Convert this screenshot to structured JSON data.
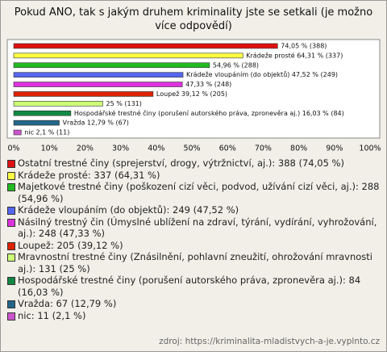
{
  "chart_data": {
    "type": "bar",
    "orientation": "horizontal",
    "title": "Pokud ANO, tak s jakým druhem kriminality jste se setkali (je možno více odpovědí)",
    "categories": [
      "Ostatní trestné činy (sprejerství, drogy, výtržnictví, aj.): 388 (74,05 %)",
      "Krádeže prosté: 337 (64,31 %)",
      "Majetkové trestné činy (poškození cizí věci, podvod, užívání cizí věci, aj.): 288 (54,96 %)",
      "Krádeže vloupáním (do objektů): 249 (47,52 %)",
      "Násilný trestný čin (Úmyslné ublížení na zdraví, týrání, vydírání, vyhrožování, aj.): 248 (47,33 %)",
      "Loupež: 205 (39,12 %)",
      "Mravnostní trestné činy (Znásilnění, pohlavní zneužití, ohrožování mravnosti aj.): 131 (25 %)",
      "Hospodářské trestné činy (porušení autorského práva, zpronevěra aj.): 84 (16,03 %)",
      "Vražda: 67 (12,79 %)",
      "nic: 11 (2,1 %)"
    ],
    "values": [
      74.05,
      64.31,
      54.96,
      47.52,
      47.33,
      39.12,
      25,
      16.03,
      12.79,
      2.1
    ],
    "value_labels": [
      "74,05 % (388)",
      "Krádeže prosté 64,31 % (337)",
      "54,96 % (288)",
      "Krádeže vloupáním (do objektů) 47,52 % (249)",
      "47,33 % (248)",
      "Loupež 39,12 % (205)",
      "25 % (131)",
      "Hospodářské trestné činy (porušení autorského práva, zpronevěra aj.) 16,03 % (84)",
      "Vražda 12,79 % (67)",
      "nic 2,1 % (11)"
    ],
    "colors": [
      "#dd1111",
      "#ffff44",
      "#22bb22",
      "#5566ee",
      "#dd33dd",
      "#dd2200",
      "#ccff77",
      "#118844",
      "#226688",
      "#cc55cc"
    ],
    "xlim": [
      0,
      100
    ],
    "xticks": [
      {
        "value": 0,
        "label": "0%"
      },
      {
        "value": 10,
        "label": "10%"
      },
      {
        "value": 20,
        "label": "20%"
      },
      {
        "value": 30,
        "label": "30%"
      },
      {
        "value": 40,
        "label": "40%"
      },
      {
        "value": 50,
        "label": "50%"
      },
      {
        "value": 60,
        "label": "60%"
      },
      {
        "value": 70,
        "label": "70%"
      },
      {
        "value": 80,
        "label": "80%"
      },
      {
        "value": 90,
        "label": "90%"
      },
      {
        "value": 100,
        "label": "100%"
      }
    ],
    "grid": false,
    "source": "zdroj: https://kriminalita-mladistvych-a-je.vyplnto.cz"
  }
}
